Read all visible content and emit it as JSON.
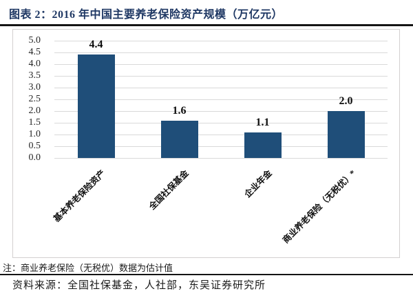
{
  "header": {
    "title": "图表 2：2016 年中国主要养老保险资产规模（万亿元）"
  },
  "footer": {
    "note": "注：商业养老保险（无税优）数据为估计值",
    "source": "资料来源：全国社保基金，人社部，东吴证券研究所"
  },
  "colors": {
    "bar": "#1F4E79",
    "title_text": "#1F3864",
    "gridline": "#D9D9D9",
    "chart_border": "#D2D0D0",
    "rule": "#141414",
    "text": "#1A1A1A"
  },
  "chart_data": {
    "type": "bar",
    "title": "2016 年中国主要养老保险资产规模（万亿元）",
    "categories": [
      "基本养老保险资产",
      "全国社保基金",
      "企业年金",
      "商业养老保险（无税优）*"
    ],
    "values": [
      4.4,
      1.6,
      1.1,
      2.0
    ],
    "value_labels": [
      "4.4",
      "1.6",
      "1.1",
      "2.0"
    ],
    "xlabel": "",
    "ylabel": "",
    "ylim": [
      0,
      5
    ],
    "ytick_step": 0.5,
    "ytick_labels": [
      "0.0",
      "0.5",
      "1.0",
      "1.5",
      "2.0",
      "2.5",
      "3.0",
      "3.5",
      "4.0",
      "4.5",
      "5.0"
    ],
    "grid": true,
    "legend_position": "none",
    "category_label_rotation_deg": 45
  }
}
